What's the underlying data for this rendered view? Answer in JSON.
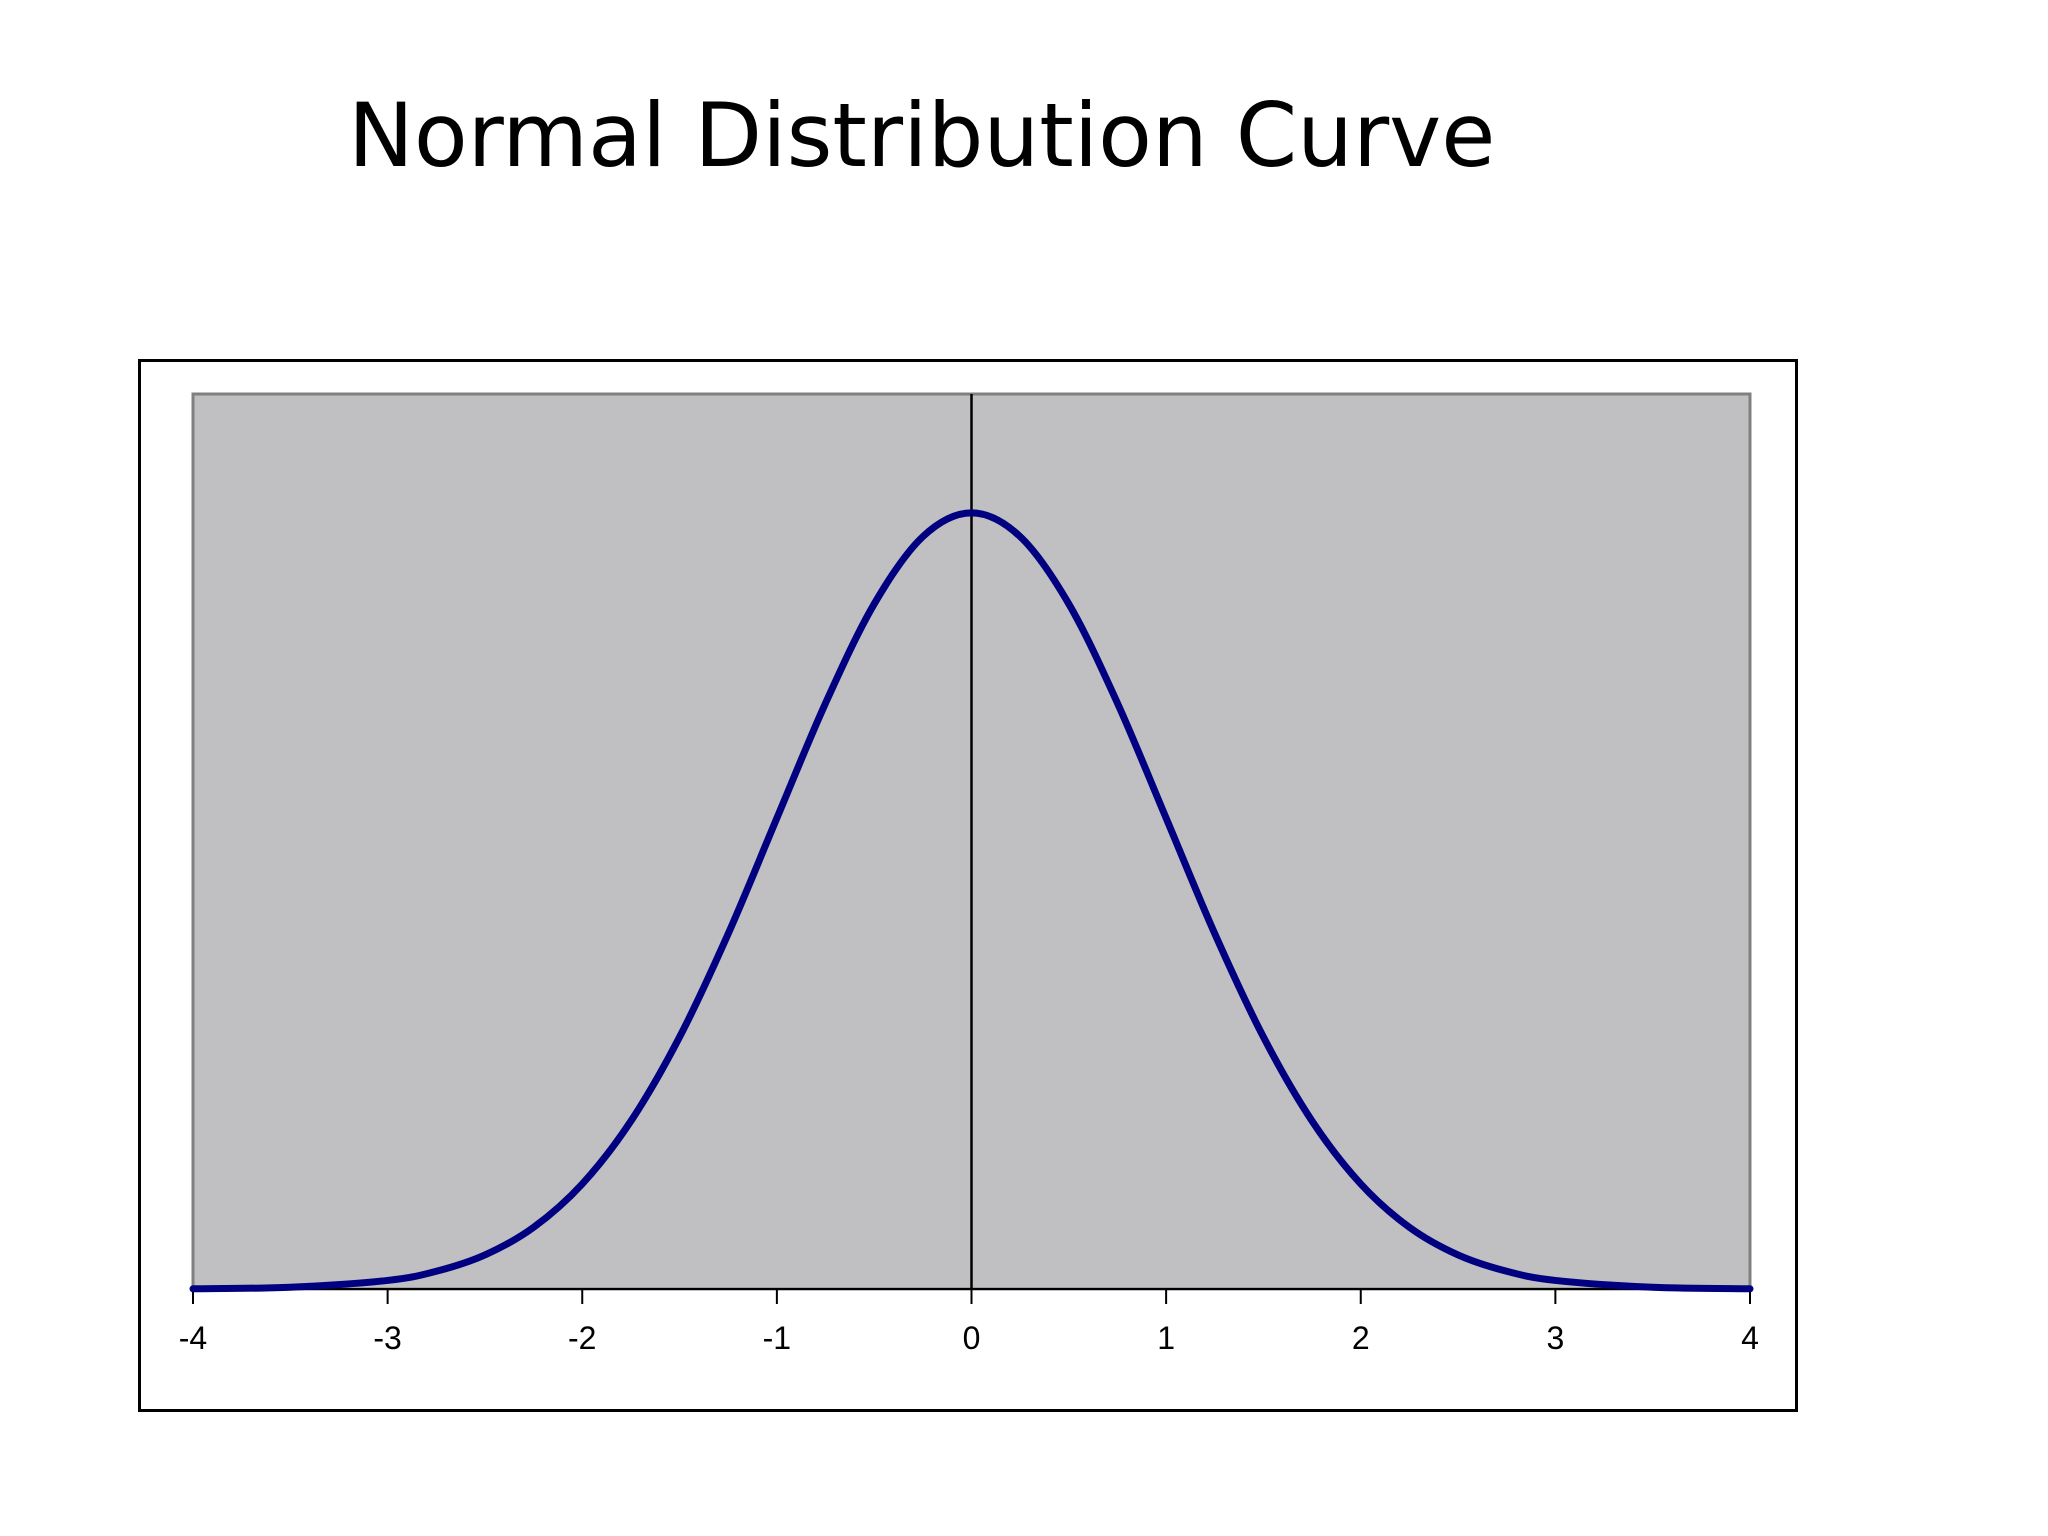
{
  "page": {
    "title": "Normal Distribution Curve"
  },
  "chart_data": {
    "type": "line",
    "title": "",
    "xlabel": "",
    "ylabel": "",
    "xlim": [
      -4,
      4
    ],
    "ylim": [
      0,
      0.46
    ],
    "x_ticks": [
      -4,
      -3,
      -2,
      -1,
      0,
      1,
      2,
      3,
      4
    ],
    "tick_labels": [
      "-4",
      "-3",
      "-2",
      "-1",
      "0",
      "1",
      "2",
      "3",
      "4"
    ],
    "vertical_line_x": 0,
    "grid": false,
    "legend": "none",
    "series": [
      {
        "x": [
          -4,
          -3.5,
          -3,
          -2.75,
          -2.5,
          -2.25,
          -2,
          -1.75,
          -1.5,
          -1.25,
          -1,
          -0.75,
          -0.5,
          -0.25,
          0,
          0.25,
          0.5,
          0.75,
          1,
          1.25,
          1.5,
          1.75,
          2,
          2.25,
          2.5,
          2.75,
          3,
          3.5,
          4
        ],
        "y": [
          0.0001,
          0.0009,
          0.0044,
          0.0091,
          0.0175,
          0.0317,
          0.054,
          0.0863,
          0.1295,
          0.1826,
          0.242,
          0.3011,
          0.3521,
          0.3867,
          0.3989,
          0.3867,
          0.3521,
          0.3011,
          0.242,
          0.1826,
          0.1295,
          0.0863,
          0.054,
          0.0317,
          0.0175,
          0.0091,
          0.0044,
          0.0009,
          0.0001
        ]
      }
    ],
    "colors": {
      "curve": "#000080",
      "plot_area": "#c0bfc1",
      "plot_border": "#808080",
      "axis": "#000000"
    }
  }
}
